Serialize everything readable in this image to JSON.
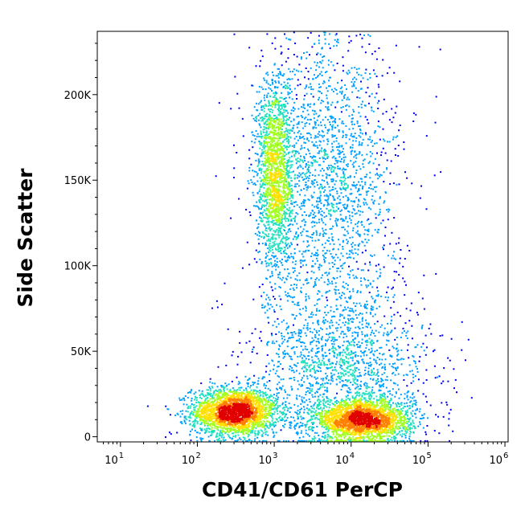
{
  "chart_data": {
    "type": "scatter",
    "xlabel": "CD41/CD61 PerCP",
    "ylabel": "Side Scatter",
    "x_scale": "log",
    "xlim": [
      5,
      1100000
    ],
    "ylim": [
      -3000,
      237000
    ],
    "x_ticks": [
      {
        "base": "10",
        "exp": "1",
        "value": 10
      },
      {
        "base": "10",
        "exp": "2",
        "value": 100
      },
      {
        "base": "10",
        "exp": "3",
        "value": 1000
      },
      {
        "base": "10",
        "exp": "4",
        "value": 10000
      },
      {
        "base": "10",
        "exp": "5",
        "value": 100000
      },
      {
        "base": "10",
        "exp": "6",
        "value": 1000000
      }
    ],
    "y_ticks": [
      {
        "label": "0",
        "value": 0
      },
      {
        "label": "50K",
        "value": 50000
      },
      {
        "label": "100K",
        "value": 100000
      },
      {
        "label": "150K",
        "value": 150000
      },
      {
        "label": "200K",
        "value": 200000
      }
    ],
    "density_colors": [
      "#0000ee",
      "#00a0ff",
      "#20e0c0",
      "#a0ff20",
      "#ffe000",
      "#ff8000",
      "#e00000"
    ],
    "populations": [
      {
        "x_center": 300,
        "y_center": 15000,
        "x_spread": 0.28,
        "y_spread": 7000,
        "count": 2600
      },
      {
        "x_center": 14000,
        "y_center": 10000,
        "x_spread": 0.32,
        "y_spread": 6000,
        "count": 2400
      },
      {
        "x_center": 1000,
        "y_center": 155000,
        "x_spread": 0.12,
        "y_spread": 28000,
        "count": 1700
      },
      {
        "x_center": 5000,
        "y_center": 150000,
        "x_spread": 0.45,
        "y_spread": 45000,
        "count": 2000
      },
      {
        "x_center": 8000,
        "y_center": 40000,
        "x_spread": 0.55,
        "y_spread": 25000,
        "count": 1600
      }
    ]
  }
}
